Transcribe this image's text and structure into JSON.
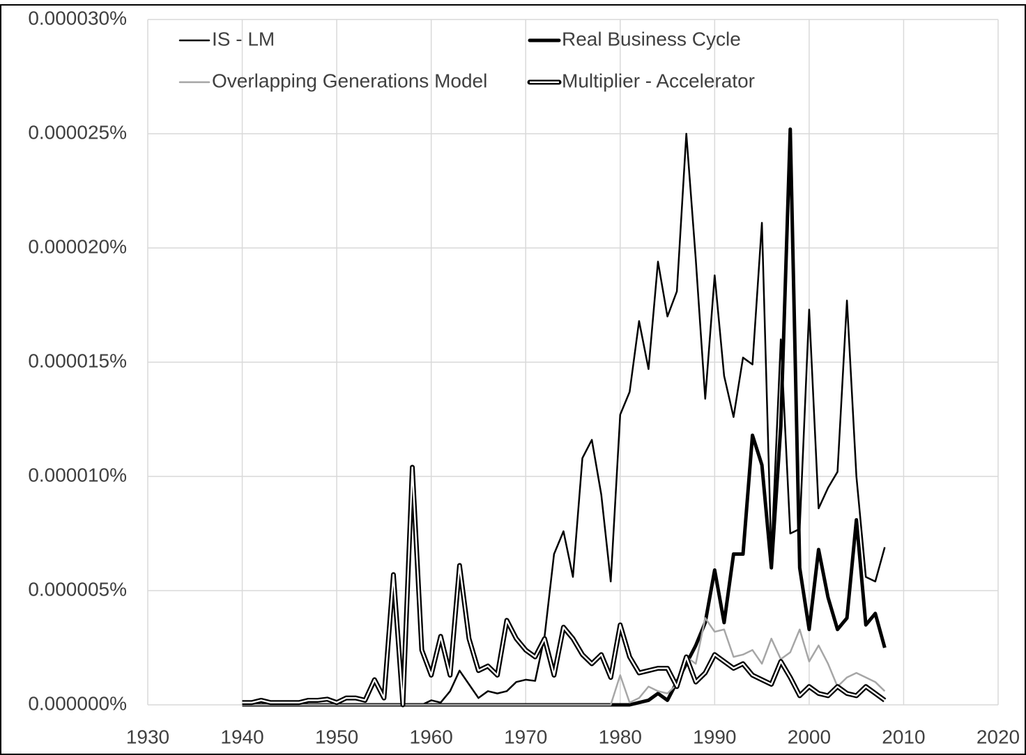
{
  "chart_data": {
    "type": "line",
    "x": [
      1940,
      1941,
      1942,
      1943,
      1944,
      1945,
      1946,
      1947,
      1948,
      1949,
      1950,
      1951,
      1952,
      1953,
      1954,
      1955,
      1956,
      1957,
      1958,
      1959,
      1960,
      1961,
      1962,
      1963,
      1964,
      1965,
      1966,
      1967,
      1968,
      1969,
      1970,
      1971,
      1972,
      1973,
      1974,
      1975,
      1976,
      1977,
      1978,
      1979,
      1980,
      1981,
      1982,
      1983,
      1984,
      1985,
      1986,
      1987,
      1988,
      1989,
      1990,
      1991,
      1992,
      1993,
      1994,
      1995,
      1996,
      1997,
      1998,
      1999,
      2000,
      2001,
      2002,
      2003,
      2004,
      2005,
      2006,
      2007,
      2008
    ],
    "series": [
      {
        "name": "IS - LM",
        "color": "#000000",
        "width": 2.5,
        "values": [
          0,
          0,
          0,
          0,
          0,
          0,
          0,
          0,
          0,
          0,
          0,
          0,
          0,
          0,
          0,
          0,
          0,
          0,
          0,
          0,
          2e-07,
          1e-07,
          6e-07,
          1.5e-06,
          9e-07,
          3e-07,
          6e-07,
          5e-07,
          6e-07,
          1e-06,
          1.1e-06,
          1.05e-06,
          3e-06,
          6.6e-06,
          7.6e-06,
          5.6e-06,
          1.08e-05,
          1.16e-05,
          9.2e-06,
          5.4e-06,
          1.27e-05,
          1.37e-05,
          1.68e-05,
          1.47e-05,
          1.94e-05,
          1.7e-05,
          1.81e-05,
          2.5e-05,
          1.95e-05,
          1.34e-05,
          1.88e-05,
          1.44e-05,
          1.26e-05,
          1.52e-05,
          1.49e-05,
          2.11e-05,
          6.5e-06,
          1.6e-05,
          7.5e-06,
          7.7e-06,
          1.73e-05,
          8.6e-06,
          9.5e-06,
          1.02e-05,
          1.77e-05,
          1e-05,
          5.6e-06,
          5.4e-06,
          6.9e-06
        ]
      },
      {
        "name": "Real Business Cycle",
        "color": "#000000",
        "width": 5,
        "values": [
          0,
          0,
          0,
          0,
          0,
          0,
          0,
          0,
          0,
          0,
          0,
          0,
          0,
          0,
          0,
          0,
          0,
          0,
          0,
          0,
          0,
          0,
          0,
          0,
          0,
          0,
          0,
          0,
          0,
          0,
          0,
          0,
          0,
          0,
          0,
          0,
          0,
          0,
          0,
          0,
          0,
          0,
          1e-07,
          2e-07,
          5e-07,
          2e-07,
          1e-06,
          1.8e-06,
          2.6e-06,
          3.6e-06,
          5.9e-06,
          3.6e-06,
          6.6e-06,
          6.6e-06,
          1.18e-05,
          1.05e-05,
          6e-06,
          1.22e-05,
          2.52e-05,
          6e-06,
          3.3e-06,
          6.8e-06,
          4.7e-06,
          3.3e-06,
          3.8e-06,
          8.1e-06,
          3.5e-06,
          4e-06,
          2.5e-06
        ]
      },
      {
        "name": "Overlapping Generations Model",
        "color": "#a6a6a6",
        "width": 2.5,
        "values": [
          0,
          0,
          0,
          0,
          0,
          0,
          0,
          0,
          0,
          0,
          0,
          0,
          0,
          0,
          0,
          0,
          0,
          0,
          0,
          0,
          0,
          0,
          0,
          0,
          0,
          0,
          0,
          0,
          0,
          0,
          0,
          0,
          0,
          0,
          0,
          0,
          0,
          0,
          0,
          0,
          1.3e-06,
          1e-07,
          3e-07,
          8e-07,
          6e-07,
          5e-07,
          9e-07,
          2.1e-06,
          1.8e-06,
          3.8e-06,
          3.2e-06,
          3.3e-06,
          2.1e-06,
          2.2e-06,
          2.4e-06,
          1.8e-06,
          2.9e-06,
          2e-06,
          2.3e-06,
          3.3e-06,
          1.9e-06,
          2.6e-06,
          1.8e-06,
          8e-07,
          1.2e-06,
          1.4e-06,
          1.2e-06,
          1e-06,
          6e-07
        ]
      },
      {
        "name": "Multiplier - Accelerator",
        "color": "#000000",
        "width": 7,
        "double": true,
        "values": [
          1e-07,
          1e-07,
          2e-07,
          1e-07,
          1e-07,
          1e-07,
          1e-07,
          2e-07,
          2e-07,
          2.5e-07,
          1e-07,
          3e-07,
          3e-07,
          2e-07,
          1.1e-06,
          3e-07,
          5.7e-06,
          0,
          1.04e-05,
          2.4e-06,
          1.3e-06,
          3e-06,
          1.3e-06,
          6.1e-06,
          2.9e-06,
          1.5e-06,
          1.7e-06,
          1.3e-06,
          3.7e-06,
          2.9e-06,
          2.4e-06,
          2.1e-06,
          2.9e-06,
          1.3e-06,
          3.4e-06,
          2.9e-06,
          2.2e-06,
          1.8e-06,
          2.2e-06,
          1.2e-06,
          3.5e-06,
          2.1e-06,
          1.4e-06,
          1.5e-06,
          1.6e-06,
          1.6e-06,
          8e-07,
          2.1e-06,
          1e-06,
          1.4e-06,
          2.2e-06,
          1.9e-06,
          1.6e-06,
          1.8e-06,
          1.3e-06,
          1.1e-06,
          9e-07,
          1.9e-06,
          1.2e-06,
          4e-07,
          8e-07,
          5e-07,
          4e-07,
          8e-07,
          5e-07,
          4e-07,
          8e-07,
          5e-07,
          2e-07
        ]
      }
    ],
    "xlim": [
      1930,
      2020
    ],
    "xticks": [
      1930,
      1940,
      1950,
      1960,
      1970,
      1980,
      1990,
      2000,
      2010,
      2020
    ],
    "ylim": [
      0,
      3e-05
    ],
    "yticks": [
      {
        "value": 0,
        "label": "0.000000%"
      },
      {
        "value": 5e-06,
        "label": "0.000005%"
      },
      {
        "value": 1e-05,
        "label": "0.000010%"
      },
      {
        "value": 1.5e-05,
        "label": "0.000015%"
      },
      {
        "value": 2e-05,
        "label": "0.000020%"
      },
      {
        "value": 2.5e-05,
        "label": "0.000025%"
      },
      {
        "value": 3e-05,
        "label": "0.000030%"
      }
    ],
    "grid": true,
    "legend": "top"
  }
}
